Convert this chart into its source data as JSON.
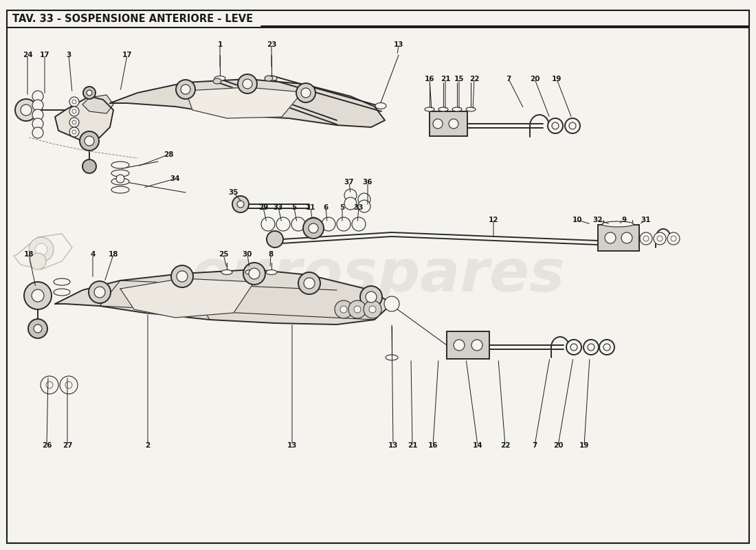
{
  "title": "TAV. 33 - SOSPENSIONE ANTERIORE - LEVE",
  "bg_color": "#f5f3ee",
  "line_color": "#1a1a1a",
  "draw_color": "#2a2a2a",
  "watermark": "eurospares",
  "watermark_color": "#d8d4cc",
  "fig_width": 11.0,
  "fig_height": 8.0,
  "dpi": 100,
  "title_fontsize": 10.5,
  "label_fontsize": 7.5
}
